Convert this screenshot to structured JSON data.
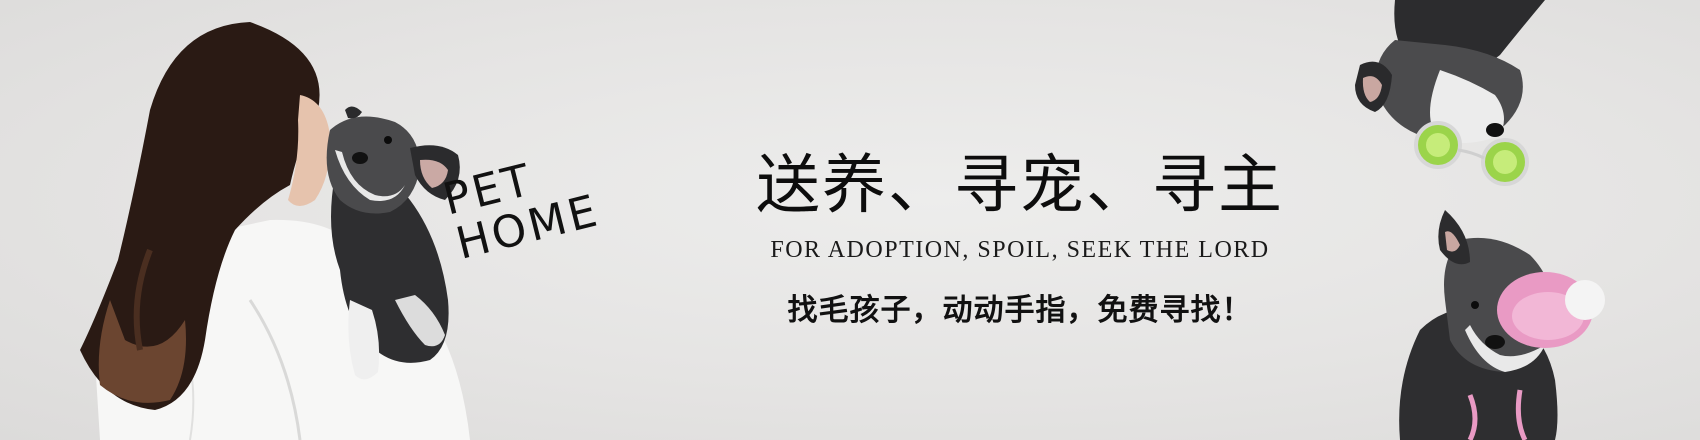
{
  "banner": {
    "badge": {
      "line1": "PET",
      "line2": "HOME"
    },
    "headline": "送养、寻宠、寻主",
    "subtitle": "FOR ADOPTION, SPOIL, SEEK THE LORD",
    "tagline": "找毛孩子，动动手指，免费寻找！"
  },
  "icons": [
    "woman-with-dog-photo",
    "dog-with-lime-glasses-photo",
    "dog-with-pink-hat-photo"
  ],
  "colors": {
    "background": "#e6e5e4",
    "text": "#111111"
  }
}
